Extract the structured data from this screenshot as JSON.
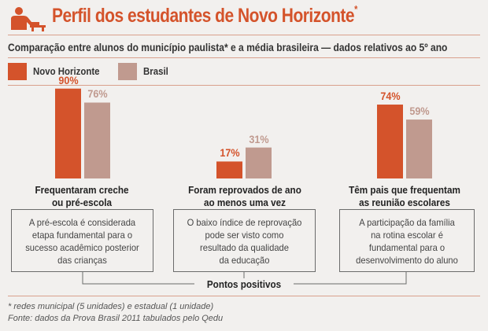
{
  "header": {
    "title": "Perfil dos estudantes de Novo Horizonte",
    "title_marker": "*",
    "subtitle": "Comparação entre alunos do município paulista* e a média brasileira — dados relativos ao 5º ano"
  },
  "colors": {
    "novo_horizonte": "#d4532b",
    "brasil": "#c09a8f",
    "title": "#d4532b"
  },
  "chart_data": {
    "type": "bar",
    "categories": [
      "Frequentaram creche ou pré-escola",
      "Foram reprovados de ano ao menos uma vez",
      "Têm pais que frequentam as reunião escolares"
    ],
    "series": [
      {
        "name": "Novo Horizonte",
        "values": [
          90,
          17,
          74
        ],
        "labels": [
          "90%",
          "17%",
          "74%"
        ]
      },
      {
        "name": "Brasil",
        "values": [
          76,
          31,
          59
        ],
        "labels": [
          "76%",
          "31%",
          "59%"
        ]
      }
    ],
    "unit": "%",
    "ylim": [
      0,
      100
    ],
    "grid": false,
    "legend_position": "top-left"
  },
  "categories_text": [
    {
      "line1": "Frequentaram creche",
      "line2": "ou pré-escola"
    },
    {
      "line1": "Foram reprovados de ano",
      "line2": "ao menos uma vez"
    },
    {
      "line1": "Têm pais que frequentam",
      "line2": "as reunião escolares"
    }
  ],
  "boxes": [
    [
      "A pré-escola é considerada",
      "etapa fundamental para o",
      "sucesso acadêmico posterior",
      "das crianças"
    ],
    [
      "O baixo índice de reprovação",
      "pode ser visto como",
      "resultado da qualidade",
      "da educação"
    ],
    [
      "A participação da família",
      "na rotina escolar é",
      "fundamental para o",
      "desenvolvimento do aluno"
    ]
  ],
  "positives_label": "Pontos positivos",
  "notes": {
    "footnote": "* redes municipal (5 unidades) e estadual (1 unidade)",
    "source": "Fonte: dados da Prova Brasil 2011 tabulados pelo Qedu"
  },
  "icons": {
    "title": "students-icon"
  }
}
